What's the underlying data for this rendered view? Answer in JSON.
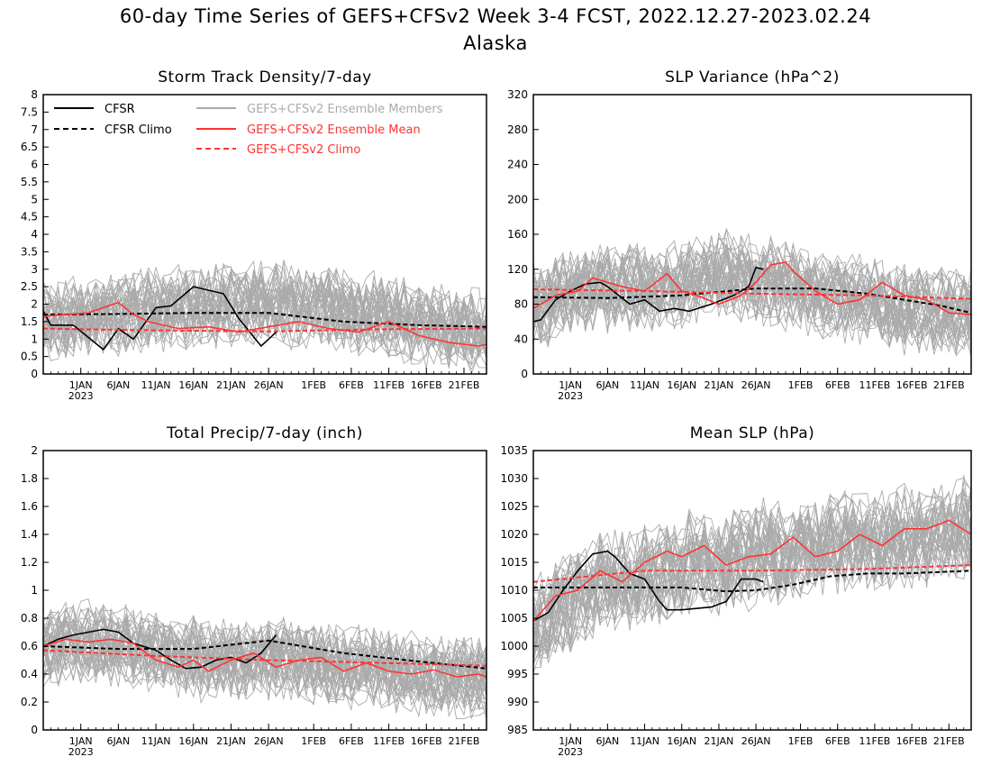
{
  "title": "60-day Time Series of GEFS+CFSv2 Week 3-4 FCST, 2022.12.27-2023.02.24",
  "subtitle": "Alaska",
  "x_ticks": [
    "1JAN",
    "6JAN",
    "11JAN",
    "16JAN",
    "21JAN",
    "26JAN",
    "1FEB",
    "6FEB",
    "11FEB",
    "16FEB",
    "21FEB"
  ],
  "x_tick_days": [
    5,
    10,
    15,
    20,
    25,
    30,
    36,
    41,
    46,
    51,
    56
  ],
  "x_year_label": "2023",
  "legend": [
    {
      "label": "CFSR",
      "color": "#000000",
      "dash": "solid"
    },
    {
      "label": "CFSR Climo",
      "color": "#000000",
      "dash": "dashed"
    },
    {
      "label": "GEFS+CFSv2 Ensemble Members",
      "color": "#aaaaaa",
      "dash": "solid"
    },
    {
      "label": "GEFS+CFSv2 Ensemble Mean",
      "color": "#ff3333",
      "dash": "solid"
    },
    {
      "label": "GEFS+CFSv2 Climo",
      "color": "#ff3333",
      "dash": "dashed"
    }
  ],
  "chart_data": [
    {
      "type": "line",
      "title": "Storm Track Density/7-day",
      "ylim": [
        0,
        8
      ],
      "yticks": [
        "0",
        "0.5",
        "1",
        "1.5",
        "2",
        "2.5",
        "3",
        "3.5",
        "4",
        "4.5",
        "5",
        "5.5",
        "6",
        "6.5",
        "7",
        "7.5",
        "8"
      ],
      "ytick_values": [
        0,
        0.5,
        1,
        1.5,
        2,
        2.5,
        3,
        3.5,
        4,
        4.5,
        5,
        5.5,
        6,
        6.5,
        7,
        7.5,
        8
      ],
      "ensemble": {
        "member_count": 40,
        "center": [
          1.6,
          1.6,
          1.7,
          1.7,
          1.8,
          1.8,
          1.9,
          1.9,
          2.0,
          2.0,
          2.0,
          1.9,
          1.9,
          1.8,
          1.7,
          1.6,
          1.5,
          1.4,
          1.3,
          1.2
        ],
        "spread": 1.3,
        "seed": 11,
        "clip": [
          0,
          5.2
        ]
      },
      "series": [
        {
          "name": "CFSR",
          "color": "#000000",
          "dash": "solid",
          "x": [
            0,
            1,
            4,
            8,
            10,
            12,
            15,
            17,
            20,
            21,
            24,
            26,
            29,
            30,
            31
          ],
          "y": [
            1.8,
            1.4,
            1.4,
            0.7,
            1.3,
            1.0,
            1.9,
            1.95,
            2.5,
            2.45,
            2.3,
            1.6,
            0.8,
            1.0,
            1.2
          ]
        },
        {
          "name": "CFSR Climo",
          "color": "#000000",
          "dash": "dashed",
          "x": [
            0,
            10,
            20,
            30,
            40,
            50,
            59
          ],
          "y": [
            1.7,
            1.72,
            1.75,
            1.75,
            1.5,
            1.4,
            1.35
          ]
        },
        {
          "name": "GEFS+CFSv2 Ensemble Mean",
          "color": "#ff3333",
          "dash": "solid",
          "x": [
            0,
            3,
            6,
            10,
            12,
            14,
            18,
            22,
            26,
            30,
            34,
            38,
            42,
            46,
            50,
            54,
            58,
            59
          ],
          "y": [
            1.65,
            1.7,
            1.75,
            2.05,
            1.7,
            1.5,
            1.3,
            1.35,
            1.2,
            1.35,
            1.5,
            1.3,
            1.2,
            1.5,
            1.1,
            0.9,
            0.8,
            0.85
          ]
        },
        {
          "name": "GEFS+CFSv2 Climo",
          "color": "#ff3333",
          "dash": "dashed",
          "x": [
            0,
            15,
            30,
            45,
            59
          ],
          "y": [
            1.3,
            1.25,
            1.22,
            1.28,
            1.3
          ]
        }
      ]
    },
    {
      "type": "line",
      "title": "SLP Variance (hPa^2)",
      "ylim": [
        0,
        320
      ],
      "yticks": [
        "0",
        "40",
        "80",
        "120",
        "160",
        "200",
        "240",
        "280",
        "320"
      ],
      "ytick_values": [
        0,
        40,
        80,
        120,
        160,
        200,
        240,
        280,
        320
      ],
      "ensemble": {
        "member_count": 40,
        "center": [
          80,
          90,
          95,
          100,
          100,
          95,
          100,
          110,
          115,
          110,
          105,
          100,
          95,
          90,
          85,
          80,
          75,
          72,
          70,
          68
        ],
        "spread": 55,
        "seed": 23,
        "clip": [
          20,
          300
        ]
      },
      "series": [
        {
          "name": "CFSR",
          "color": "#000000",
          "dash": "solid",
          "x": [
            0,
            1,
            3,
            5,
            7,
            9,
            10,
            13,
            15,
            17,
            19,
            21,
            24,
            27,
            29,
            30,
            31
          ],
          "y": [
            60,
            62,
            85,
            95,
            103,
            105,
            100,
            80,
            85,
            72,
            75,
            72,
            80,
            90,
            100,
            122,
            120
          ]
        },
        {
          "name": "CFSR Climo",
          "color": "#000000",
          "dash": "dashed",
          "x": [
            0,
            10,
            20,
            30,
            38,
            45,
            50,
            55,
            59
          ],
          "y": [
            88,
            87,
            90,
            98,
            98,
            92,
            85,
            78,
            70
          ]
        },
        {
          "name": "GEFS+CFSv2 Ensemble Mean",
          "color": "#ff3333",
          "dash": "solid",
          "x": [
            0,
            3,
            6,
            8,
            10,
            12,
            15,
            18,
            20,
            22,
            25,
            28,
            30,
            32,
            34,
            35,
            38,
            41,
            44,
            47,
            50,
            53,
            56,
            59
          ],
          "y": [
            75,
            90,
            95,
            110,
            105,
            100,
            95,
            115,
            95,
            90,
            80,
            90,
            105,
            125,
            128,
            118,
            95,
            80,
            85,
            105,
            90,
            85,
            70,
            68
          ]
        },
        {
          "name": "GEFS+CFSv2 Climo",
          "color": "#ff3333",
          "dash": "dashed",
          "x": [
            0,
            15,
            30,
            45,
            59
          ],
          "y": [
            97,
            95,
            92,
            90,
            86
          ]
        }
      ]
    },
    {
      "type": "line",
      "title": "Total Precip/7-day (inch)",
      "ylim": [
        0,
        2
      ],
      "yticks": [
        "0",
        "0.2",
        "0.4",
        "0.6",
        "0.8",
        "1",
        "1.2",
        "1.4",
        "1.6",
        "1.8",
        "2"
      ],
      "ytick_values": [
        0,
        0.2,
        0.4,
        0.6,
        0.8,
        1.0,
        1.2,
        1.4,
        1.6,
        1.8,
        2.0
      ],
      "ensemble": {
        "member_count": 40,
        "center": [
          0.6,
          0.62,
          0.62,
          0.6,
          0.58,
          0.55,
          0.53,
          0.5,
          0.5,
          0.5,
          0.5,
          0.5,
          0.48,
          0.47,
          0.46,
          0.44,
          0.42,
          0.4,
          0.38,
          0.38
        ],
        "spread": 0.33,
        "seed": 37,
        "clip": [
          0.08,
          1.25
        ]
      },
      "series": [
        {
          "name": "CFSR",
          "color": "#000000",
          "dash": "solid",
          "x": [
            0,
            2,
            4,
            6,
            8,
            10,
            12,
            15,
            17,
            19,
            21,
            23,
            25,
            27,
            29,
            31
          ],
          "y": [
            0.6,
            0.65,
            0.68,
            0.7,
            0.72,
            0.7,
            0.62,
            0.57,
            0.5,
            0.44,
            0.45,
            0.5,
            0.52,
            0.48,
            0.55,
            0.68
          ]
        },
        {
          "name": "CFSR Climo",
          "color": "#000000",
          "dash": "dashed",
          "x": [
            0,
            10,
            20,
            30,
            40,
            50,
            59
          ],
          "y": [
            0.6,
            0.58,
            0.58,
            0.64,
            0.55,
            0.49,
            0.44
          ]
        },
        {
          "name": "GEFS+CFSv2 Ensemble Mean",
          "color": "#ff3333",
          "dash": "solid",
          "x": [
            0,
            3,
            6,
            9,
            12,
            15,
            18,
            20,
            22,
            25,
            28,
            31,
            34,
            37,
            40,
            43,
            46,
            49,
            52,
            55,
            58,
            59
          ],
          "y": [
            0.6,
            0.65,
            0.63,
            0.65,
            0.62,
            0.5,
            0.45,
            0.5,
            0.42,
            0.5,
            0.55,
            0.45,
            0.5,
            0.52,
            0.42,
            0.48,
            0.42,
            0.4,
            0.43,
            0.38,
            0.4,
            0.38
          ]
        },
        {
          "name": "GEFS+CFSv2 Climo",
          "color": "#ff3333",
          "dash": "dashed",
          "x": [
            0,
            15,
            30,
            45,
            59
          ],
          "y": [
            0.57,
            0.53,
            0.5,
            0.48,
            0.46
          ]
        }
      ]
    },
    {
      "type": "line",
      "title": "Mean SLP (hPa)",
      "ylim": [
        985,
        1035
      ],
      "yticks": [
        "985",
        "990",
        "995",
        "1000",
        "1005",
        "1010",
        "1015",
        "1020",
        "1025",
        "1030",
        "1035"
      ],
      "ytick_values": [
        985,
        990,
        995,
        1000,
        1005,
        1010,
        1015,
        1020,
        1025,
        1030,
        1035
      ],
      "ensemble": {
        "member_count": 40,
        "center": [
          1004,
          1008,
          1010,
          1012,
          1012,
          1013,
          1014,
          1015,
          1015,
          1016,
          1017,
          1017,
          1018,
          1018,
          1019,
          1019,
          1020,
          1020,
          1021,
          1021
        ],
        "spread": 10,
        "seed": 53,
        "clip": [
          989,
          1034
        ]
      },
      "series": [
        {
          "name": "CFSR",
          "color": "#000000",
          "dash": "solid",
          "x": [
            0,
            2,
            4,
            6,
            8,
            10,
            11,
            13,
            15,
            17,
            18,
            20,
            24,
            26,
            28,
            30,
            31
          ],
          "y": [
            1004.5,
            1006,
            1010,
            1013.5,
            1016.5,
            1017,
            1016,
            1013,
            1012,
            1008,
            1006.5,
            1006.5,
            1007,
            1008,
            1012,
            1012,
            1011.5
          ]
        },
        {
          "name": "CFSR Climo",
          "color": "#000000",
          "dash": "dashed",
          "x": [
            0,
            10,
            20,
            26,
            30,
            35,
            40,
            45,
            50,
            59
          ],
          "y": [
            1010.5,
            1010.5,
            1010.5,
            1009.8,
            1010,
            1011,
            1012.5,
            1013,
            1013,
            1013.5
          ]
        },
        {
          "name": "GEFS+CFSv2 Ensemble Mean",
          "color": "#ff3333",
          "dash": "solid",
          "x": [
            0,
            3,
            6,
            9,
            12,
            15,
            18,
            20,
            23,
            26,
            29,
            32,
            35,
            38,
            41,
            44,
            47,
            50,
            53,
            56,
            59
          ],
          "y": [
            1004.5,
            1009,
            1010,
            1013.5,
            1011.5,
            1015,
            1017,
            1016,
            1018,
            1014.5,
            1016,
            1016.5,
            1019.5,
            1016,
            1017,
            1020,
            1018,
            1021,
            1021,
            1022.5,
            1020
          ]
        },
        {
          "name": "GEFS+CFSv2 Climo",
          "color": "#ff3333",
          "dash": "dashed",
          "x": [
            0,
            15,
            30,
            45,
            59
          ],
          "y": [
            1011.5,
            1013.5,
            1013.5,
            1013.8,
            1014.5
          ]
        }
      ]
    }
  ]
}
